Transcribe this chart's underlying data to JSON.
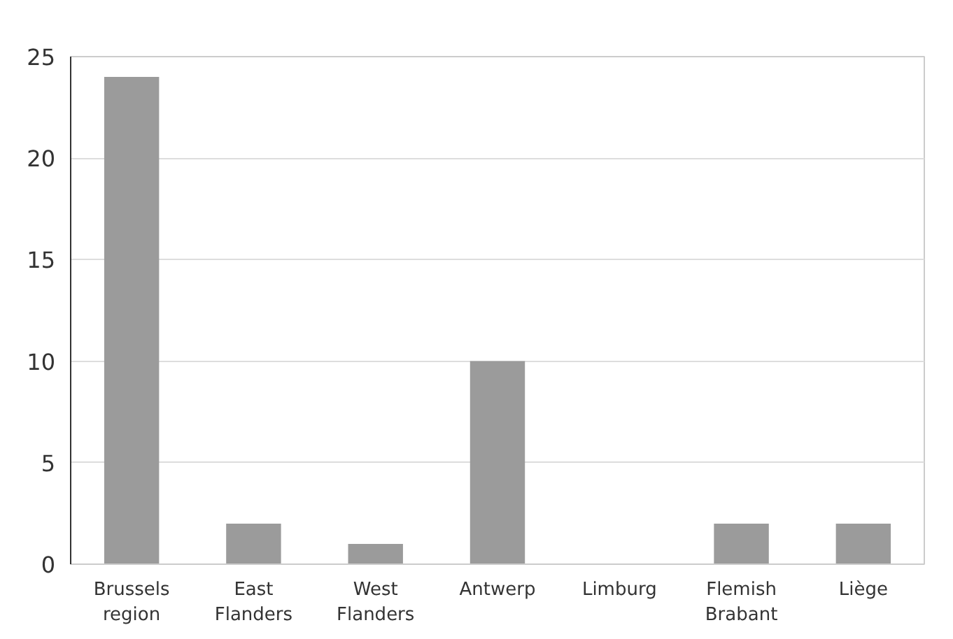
{
  "chart_data": {
    "type": "bar",
    "categories": [
      "Brussels region",
      "East Flanders",
      "West Flanders",
      "Antwerp",
      "Limburg",
      "Flemish Brabant",
      "Liège"
    ],
    "values": [
      24,
      2,
      1,
      10,
      0,
      2,
      2
    ],
    "color": "#9b9b9b",
    "ylim": [
      0,
      25
    ],
    "yticks": [
      0,
      5,
      10,
      15,
      20,
      25
    ],
    "grid": "y"
  }
}
